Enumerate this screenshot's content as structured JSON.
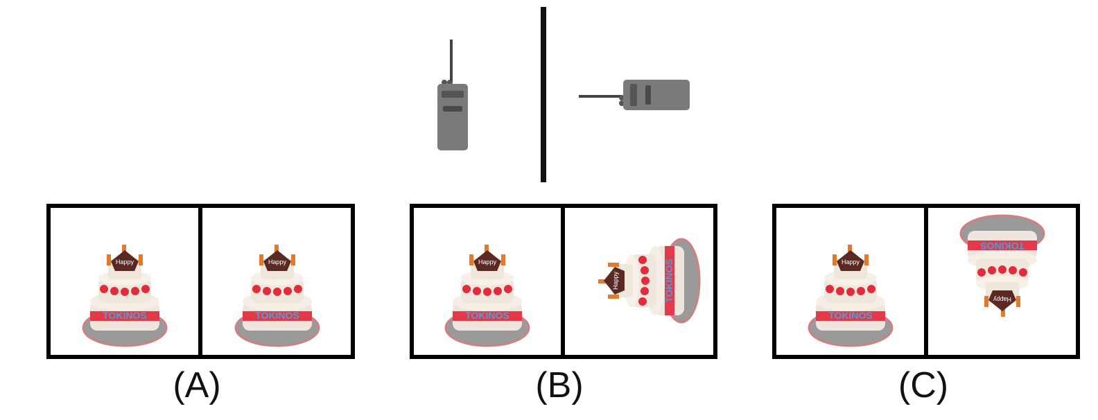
{
  "options": [
    {
      "label": "(A)"
    },
    {
      "label": "(B)"
    },
    {
      "label": "(C)"
    }
  ]
}
